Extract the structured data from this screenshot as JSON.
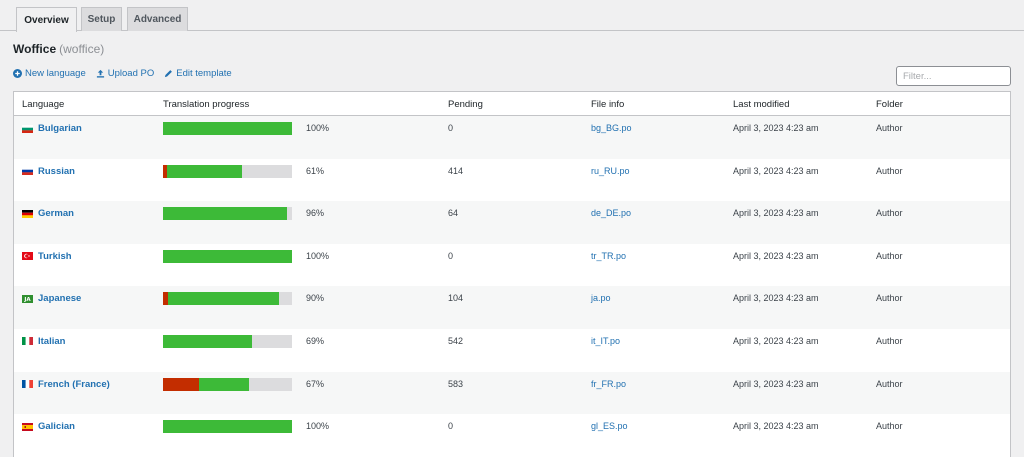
{
  "tabs": [
    {
      "label": "Overview",
      "active": true
    },
    {
      "label": "Setup",
      "active": false
    },
    {
      "label": "Advanced",
      "active": false
    }
  ],
  "header": {
    "title": "Woffice",
    "slug": "(woffice)"
  },
  "actions": [
    {
      "label": "New language",
      "icon": "plus-circle-icon"
    },
    {
      "label": "Upload PO",
      "icon": "upload-icon"
    },
    {
      "label": "Edit template",
      "icon": "pencil-icon"
    }
  ],
  "filter": {
    "placeholder": "Filter...",
    "value": ""
  },
  "table": {
    "columns": [
      "Language",
      "Translation progress",
      "Pending",
      "File info",
      "Last modified",
      "Folder"
    ],
    "rows": [
      {
        "language": "Bulgarian",
        "flag": "bg",
        "progress_pct": 100,
        "fuzzy_pct": 0,
        "progress_label": "100%",
        "pending": "0",
        "file": "bg_BG.po",
        "modified": "April 3, 2023 4:23 am",
        "folder": "Author"
      },
      {
        "language": "Russian",
        "flag": "ru",
        "progress_pct": 61,
        "fuzzy_pct": 3,
        "progress_label": "61%",
        "pending": "414",
        "file": "ru_RU.po",
        "modified": "April 3, 2023 4:23 am",
        "folder": "Author"
      },
      {
        "language": "German",
        "flag": "de",
        "progress_pct": 96,
        "fuzzy_pct": 0,
        "progress_label": "96%",
        "pending": "64",
        "file": "de_DE.po",
        "modified": "April 3, 2023 4:23 am",
        "folder": "Author"
      },
      {
        "language": "Turkish",
        "flag": "tr",
        "progress_pct": 100,
        "fuzzy_pct": 0,
        "progress_label": "100%",
        "pending": "0",
        "file": "tr_TR.po",
        "modified": "April 3, 2023 4:23 am",
        "folder": "Author"
      },
      {
        "language": "Japanese",
        "flag": "ja",
        "progress_pct": 90,
        "fuzzy_pct": 4,
        "progress_label": "90%",
        "pending": "104",
        "file": "ja.po",
        "modified": "April 3, 2023 4:23 am",
        "folder": "Author"
      },
      {
        "language": "Italian",
        "flag": "it",
        "progress_pct": 69,
        "fuzzy_pct": 0,
        "progress_label": "69%",
        "pending": "542",
        "file": "it_IT.po",
        "modified": "April 3, 2023 4:23 am",
        "folder": "Author"
      },
      {
        "language": "French (France)",
        "flag": "fr",
        "progress_pct": 67,
        "fuzzy_pct": 28,
        "progress_label": "67%",
        "pending": "583",
        "file": "fr_FR.po",
        "modified": "April 3, 2023 4:23 am",
        "folder": "Author"
      },
      {
        "language": "Galician",
        "flag": "es",
        "progress_pct": 100,
        "fuzzy_pct": 0,
        "progress_label": "100%",
        "pending": "0",
        "file": "gl_ES.po",
        "modified": "April 3, 2023 4:23 am",
        "folder": "Author"
      }
    ]
  },
  "colors": {
    "done": "#3dba38",
    "fuzzy": "#c32d00",
    "remaining": "#dcdcde",
    "link": "#2271b1"
  }
}
